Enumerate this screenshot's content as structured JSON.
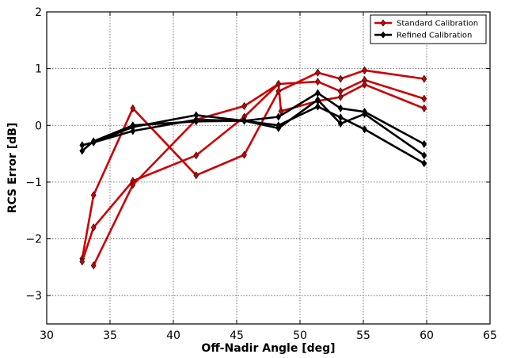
{
  "chart_data": {
    "type": "line",
    "title": "",
    "xlabel": "Off-Nadir Angle [deg]",
    "ylabel": "RCS Error [dB]",
    "xlim": [
      30,
      65
    ],
    "ylim": [
      -3.5,
      2
    ],
    "x_ticks": [
      30,
      35,
      40,
      45,
      50,
      55,
      60,
      65
    ],
    "y_ticks": [
      -3,
      -2,
      -1,
      0,
      1,
      2
    ],
    "y_tick_labels": [
      "−3",
      "−2",
      "−1",
      "0",
      "1",
      "2"
    ],
    "grid": true,
    "grid_style": "dotted",
    "legend_position": "top-right",
    "legend": [
      {
        "label": "Standard Calibration",
        "color": "#cc0000"
      },
      {
        "label": "Refined Calibration",
        "color": "#000000"
      }
    ],
    "series": [
      {
        "group": "Standard Calibration",
        "color": "#cc0000",
        "x": [
          32.8,
          33.7,
          36.8,
          41.8,
          45.6,
          48.3,
          51.4,
          53.2,
          55.1,
          59.8
        ],
        "y": [
          -2.35,
          -1.23,
          0.3,
          -0.88,
          -0.52,
          0.6,
          0.93,
          0.82,
          0.97,
          0.82
        ]
      },
      {
        "group": "Standard Calibration",
        "color": "#cc0000",
        "x": [
          32.8,
          33.7,
          36.8,
          41.8,
          45.6,
          48.3,
          51.4,
          53.2,
          55.1,
          59.8
        ],
        "y": [
          -2.4,
          -1.8,
          -0.98,
          -0.53,
          0.15,
          0.73,
          0.77,
          0.6,
          0.8,
          0.47
        ]
      },
      {
        "group": "Standard Calibration",
        "color": "#cc0000",
        "x": [
          33.7,
          36.8,
          41.8,
          45.6,
          48.3,
          48.5,
          51.4,
          53.2,
          55.1,
          59.8
        ],
        "y": [
          -2.47,
          -1.05,
          0.1,
          0.34,
          0.73,
          0.25,
          0.43,
          0.5,
          0.72,
          0.3
        ]
      },
      {
        "group": "Refined Calibration",
        "color": "#000000",
        "x": [
          32.8,
          33.7,
          36.8,
          41.8,
          45.6,
          48.3,
          51.4,
          53.2,
          55.1,
          59.8
        ],
        "y": [
          -0.35,
          -0.3,
          -0.03,
          0.18,
          0.08,
          0.15,
          0.57,
          0.3,
          0.24,
          -0.33
        ]
      },
      {
        "group": "Refined Calibration",
        "color": "#000000",
        "x": [
          32.8,
          33.7,
          36.8,
          41.8,
          45.6,
          48.3,
          51.4,
          53.2,
          55.1,
          59.8
        ],
        "y": [
          -0.45,
          -0.28,
          0.0,
          0.07,
          0.08,
          -0.05,
          0.45,
          0.03,
          0.2,
          -0.53
        ]
      },
      {
        "group": "Refined Calibration",
        "color": "#000000",
        "x": [
          33.7,
          36.8,
          41.8,
          45.6,
          48.3,
          51.4,
          53.2,
          55.1,
          59.8
        ],
        "y": [
          -0.3,
          -0.1,
          0.1,
          0.08,
          0.0,
          0.33,
          0.14,
          -0.07,
          -0.67
        ]
      }
    ]
  }
}
